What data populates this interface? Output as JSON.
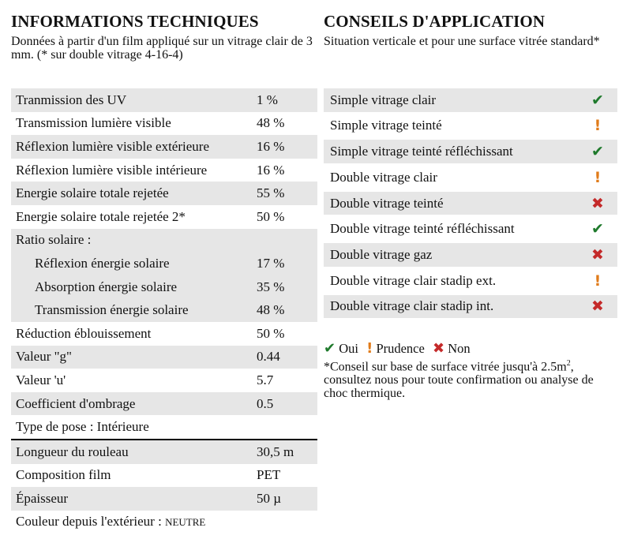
{
  "left": {
    "title": "INFORMATIONS TECHNIQUES",
    "intro": "Données à partir d'un film appliqué sur un vitrage clair de 3 mm. (* sur double vitrage 4-16-4)",
    "rows": [
      {
        "label": "Tranmission des UV",
        "value": "1 %"
      },
      {
        "label": "Transmission lumière visible",
        "value": "48 %"
      },
      {
        "label": "Réflexion lumière visible extérieure",
        "value": "16 %"
      },
      {
        "label": "Réflexion lumière visible intérieure",
        "value": "16 %"
      },
      {
        "label": "Energie solaire totale rejetée",
        "value": "55 %"
      },
      {
        "label": "Energie solaire totale rejetée 2*",
        "value": "50 %"
      },
      {
        "label": "Ratio solaire :",
        "value": ""
      },
      {
        "label": "Réflexion énergie solaire",
        "value": "17 %"
      },
      {
        "label": "Absorption énergie solaire",
        "value": "35 %"
      },
      {
        "label": "Transmission énergie solaire",
        "value": "48 %"
      },
      {
        "label": "Réduction éblouissement",
        "value": "50 %"
      },
      {
        "label": "Valeur \"g\"",
        "value": "0.44"
      },
      {
        "label": "Valeur 'u'",
        "value": "5.7"
      },
      {
        "label": "Coefficient d'ombrage",
        "value": "0.5"
      },
      {
        "label": "Type de pose : Intérieure",
        "value": ""
      },
      {
        "label": "Longueur du rouleau",
        "value": "30,5 m"
      },
      {
        "label": "Composition film",
        "value": "PET"
      },
      {
        "label": "Épaisseur",
        "value": "50 µ"
      }
    ],
    "color_label": "Couleur depuis l'extérieur : ",
    "color_value": "NEUTRE"
  },
  "right": {
    "title": "CONSEILS D'APPLICATION",
    "intro": "Situation verticale et pour une surface vitrée standard*",
    "rows": [
      {
        "label": "Simple vitrage clair",
        "status": "oui"
      },
      {
        "label": "Simple vitrage teinté",
        "status": "prudence"
      },
      {
        "label": "Simple vitrage teinté réfléchissant",
        "status": "oui"
      },
      {
        "label": "Double vitrage clair",
        "status": "prudence"
      },
      {
        "label": "Double vitrage teinté",
        "status": "non"
      },
      {
        "label": "Double vitrage teinté réfléchissant",
        "status": "oui"
      },
      {
        "label": "Double vitrage gaz",
        "status": "non"
      },
      {
        "label": "Double vitrage clair stadip ext.",
        "status": "prudence"
      },
      {
        "label": "Double vitrage clair stadip int.",
        "status": "non"
      }
    ],
    "legend": {
      "oui": "Oui",
      "prudence": "Prudence",
      "non": "Non"
    },
    "note_part1": "*Conseil sur base de surface vitrée jusqu'à 2.5m",
    "note_sup": "2",
    "note_part2": ", consultez nous pour toute confirmation ou analyse de choc thermique."
  },
  "icons": {
    "oui": "check-icon",
    "prudence": "exclamation-icon",
    "non": "cross-icon"
  },
  "colors": {
    "oui": "#1f7a2c",
    "prudence": "#e07b1a",
    "non": "#c42a2a",
    "shade": "#e6e6e6"
  }
}
